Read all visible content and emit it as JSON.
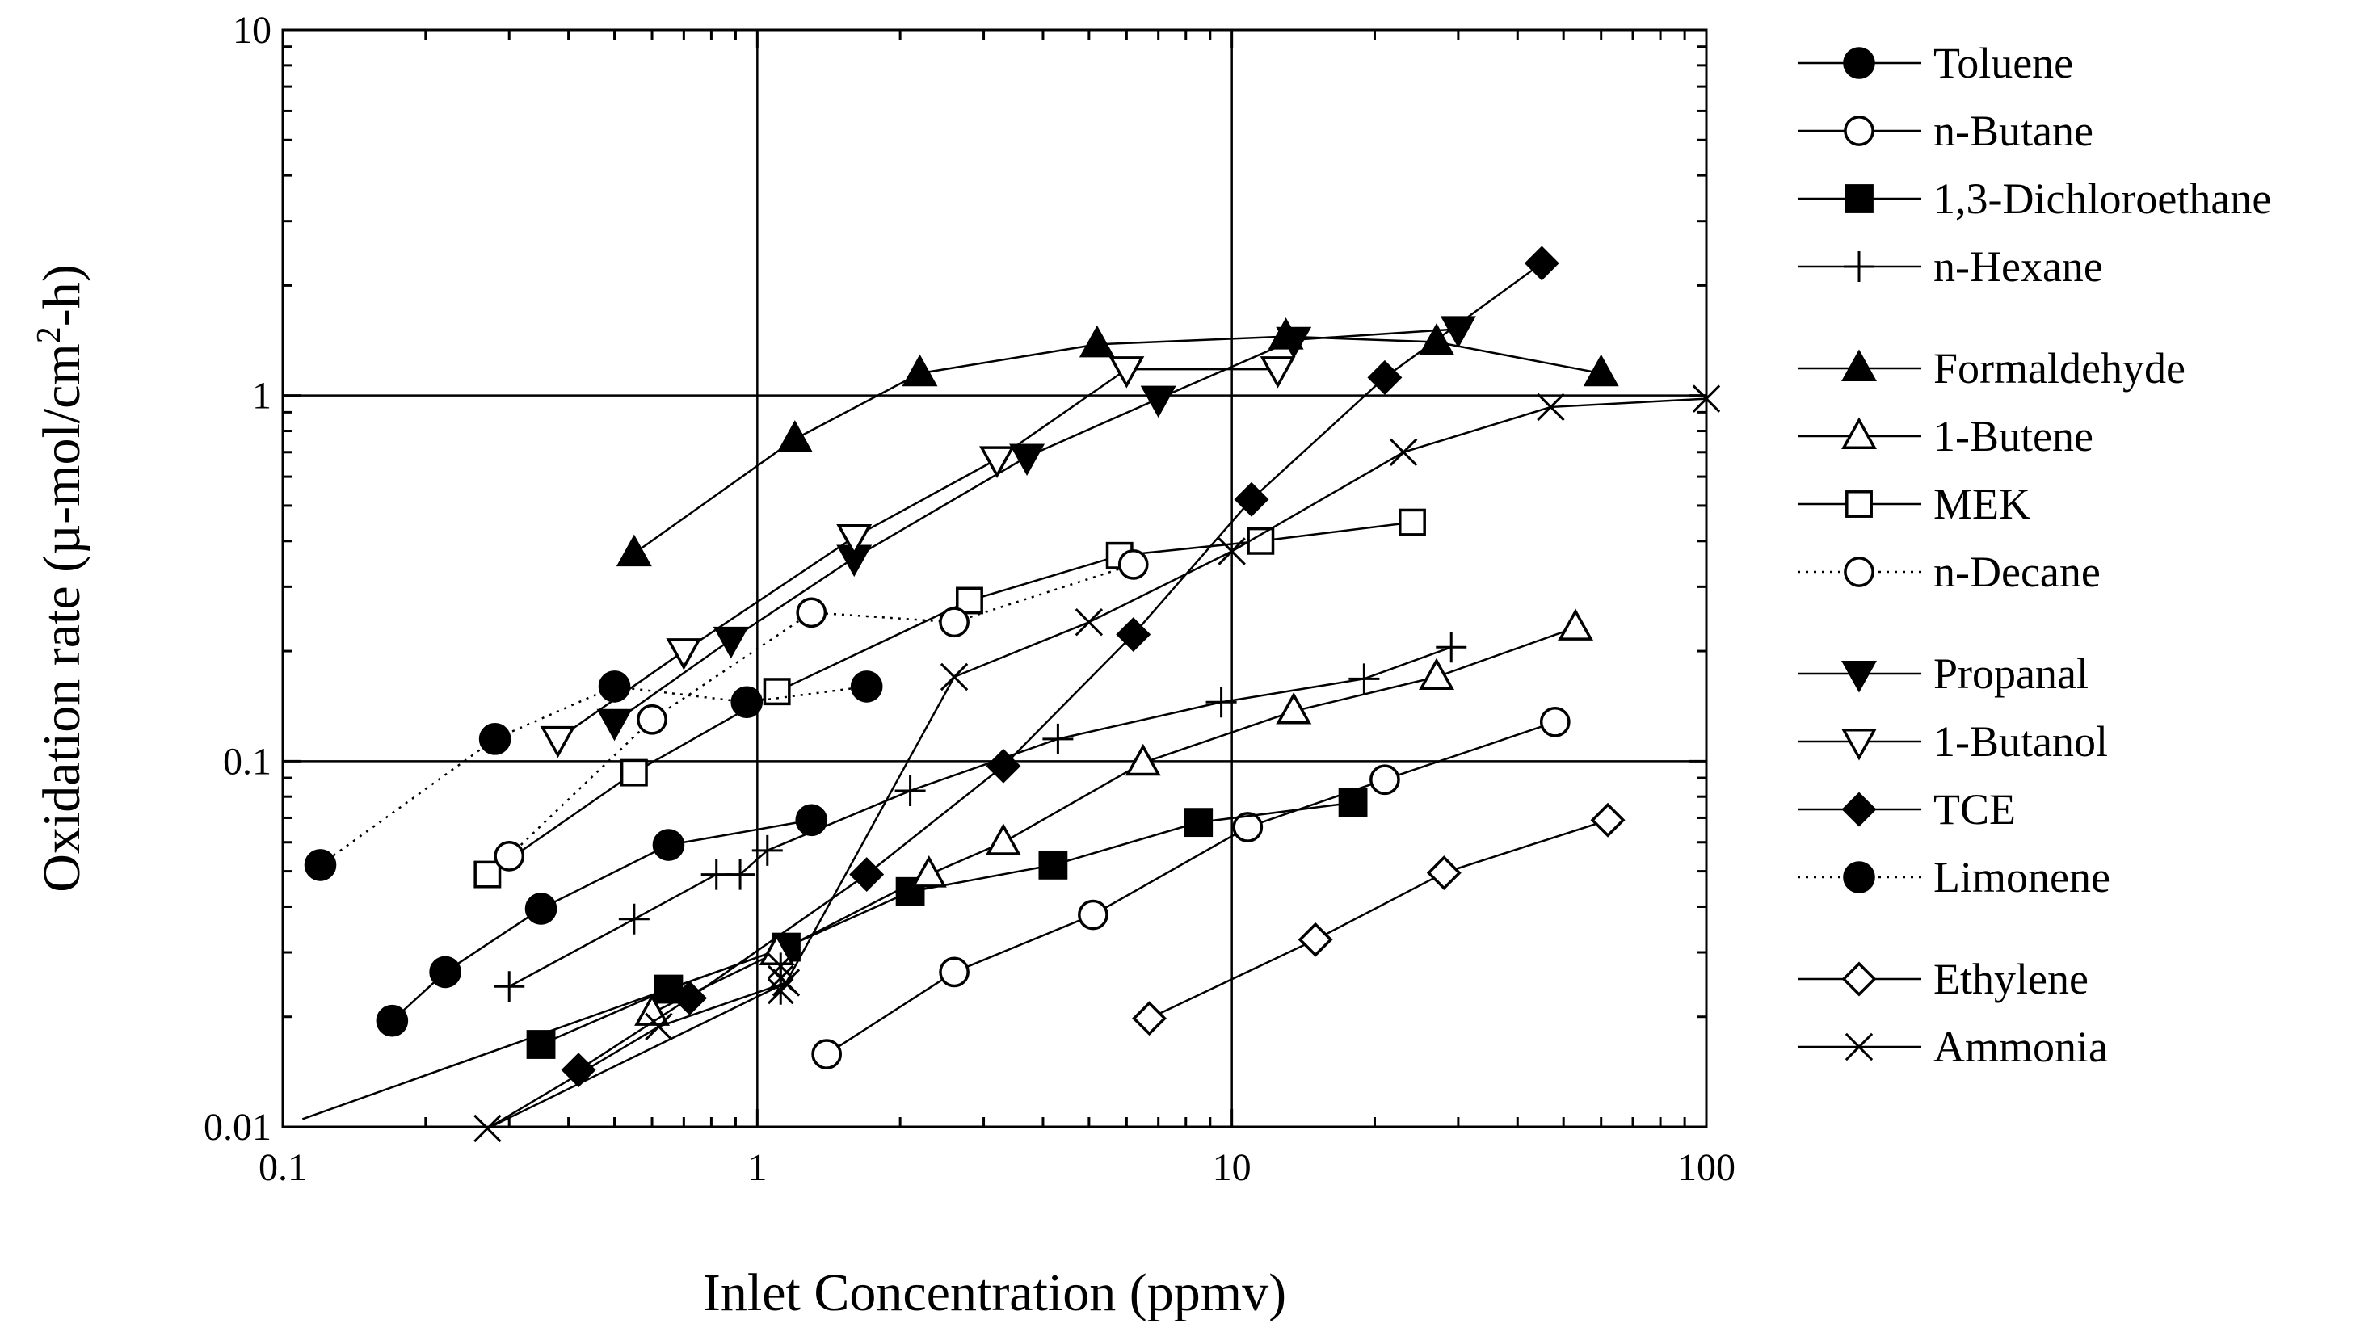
{
  "chart_data": {
    "type": "line",
    "xscale": "log",
    "yscale": "log",
    "xlim": [
      0.1,
      100
    ],
    "ylim": [
      0.01,
      10
    ],
    "grid": "major",
    "xlabel": "Inlet Concentration (ppmv)",
    "ylabel": {
      "main": "Oxidation rate (µ-mol/cm",
      "superscript": "2",
      "tail": "-h)"
    },
    "xticks": [
      {
        "value": 0.1,
        "label": "0.1"
      },
      {
        "value": 1,
        "label": "1"
      },
      {
        "value": 10,
        "label": "10"
      },
      {
        "value": 100,
        "label": "100"
      }
    ],
    "yticks": [
      {
        "value": 0.01,
        "label": "0.01"
      },
      {
        "value": 0.1,
        "label": "0.1"
      },
      {
        "value": 1,
        "label": "1"
      },
      {
        "value": 10,
        "label": "10"
      }
    ],
    "legend_position": "right",
    "series": [
      {
        "name": "Toluene",
        "marker": "circle-filled",
        "line": "solid",
        "x": [
          0.17,
          0.22,
          0.35,
          0.65,
          1.3
        ],
        "y": [
          0.0195,
          0.0265,
          0.0395,
          0.059,
          0.069
        ]
      },
      {
        "name": "n-Butane",
        "marker": "circle-open",
        "line": "solid",
        "x": [
          1.4,
          2.6,
          5.1,
          10.8,
          21,
          48
        ],
        "y": [
          0.0158,
          0.0265,
          0.038,
          0.066,
          0.089,
          0.128
        ]
      },
      {
        "name": "1,3-Dichloroethane",
        "marker": "square-filled",
        "line": "solid",
        "x": [
          0.35,
          0.65,
          1.15,
          2.1,
          4.2,
          8.5,
          18
        ],
        "y": [
          0.0168,
          0.0238,
          0.031,
          0.044,
          0.052,
          0.068,
          0.077
        ]
      },
      {
        "name": "n-Hexane",
        "marker": "plus",
        "line": "solid",
        "x": [
          0.3,
          0.55,
          0.82,
          0.92,
          1.05,
          2.1,
          4.3,
          9.5,
          19,
          29
        ],
        "y": [
          0.0242,
          0.037,
          0.049,
          0.049,
          0.057,
          0.083,
          0.115,
          0.145,
          0.168,
          0.205
        ]
      },
      {
        "name": "Formaldehyde",
        "marker": "triangle-up-filled",
        "line": "solid",
        "x": [
          0.55,
          1.2,
          2.2,
          5.2,
          13,
          27,
          60
        ],
        "y": [
          0.37,
          0.76,
          1.15,
          1.38,
          1.45,
          1.4,
          1.15
        ]
      },
      {
        "name": "1-Butene",
        "marker": "triangle-up-open",
        "line": "solid",
        "x": [
          0.6,
          1.1,
          2.3,
          3.3,
          6.5,
          13.5,
          27,
          53
        ],
        "y": [
          0.0205,
          0.03,
          0.049,
          0.06,
          0.099,
          0.137,
          0.17,
          0.232
        ]
      },
      {
        "name": "MEK",
        "marker": "square-open",
        "line": "solid",
        "x": [
          0.27,
          0.55,
          1.1,
          2.8,
          5.8,
          11.5,
          24
        ],
        "y": [
          0.049,
          0.093,
          0.155,
          0.275,
          0.365,
          0.4,
          0.45
        ]
      },
      {
        "name": "n-Decane",
        "marker": "circle-open",
        "line": "dotted",
        "x": [
          0.3,
          0.6,
          1.3,
          2.6,
          6.2
        ],
        "y": [
          0.055,
          0.13,
          0.255,
          0.24,
          0.345
        ]
      },
      {
        "name": "Propanal",
        "marker": "triangle-down-filled",
        "line": "solid",
        "x": [
          0.5,
          0.88,
          1.6,
          3.7,
          7,
          13.5,
          30
        ],
        "y": [
          0.128,
          0.215,
          0.36,
          0.68,
          0.98,
          1.42,
          1.52
        ]
      },
      {
        "name": "1-Butanol",
        "marker": "triangle-down-open",
        "line": "solid",
        "x": [
          0.38,
          0.7,
          1.6,
          3.2,
          6,
          12.5
        ],
        "y": [
          0.115,
          0.2,
          0.41,
          0.67,
          1.18,
          1.18
        ]
      },
      {
        "name": "TCE",
        "marker": "diamond-filled",
        "line": "solid",
        "x": [
          0.42,
          0.72,
          1.7,
          3.3,
          6.2,
          11,
          21,
          45
        ],
        "y": [
          0.0143,
          0.0225,
          0.049,
          0.097,
          0.222,
          0.52,
          1.12,
          2.3
        ]
      },
      {
        "name": "Limonene",
        "marker": "circle-filled",
        "line": "dotted",
        "x": [
          0.12,
          0.28,
          0.5,
          0.95,
          1.7
        ],
        "y": [
          0.052,
          0.115,
          0.16,
          0.145,
          0.16
        ]
      },
      {
        "name": "Ethylene",
        "marker": "diamond-open",
        "line": "solid",
        "x": [
          6.7,
          15,
          28,
          62
        ],
        "y": [
          0.0198,
          0.0325,
          0.0495,
          0.069
        ]
      },
      {
        "name": "Ammonia",
        "marker": "x",
        "line": "solid",
        "x": [
          0.27,
          0.62,
          1.15,
          2.6,
          5,
          10,
          23,
          47,
          100
        ],
        "y": [
          0.0099,
          0.0188,
          0.0248,
          0.17,
          0.24,
          0.375,
          0.7,
          0.93,
          0.98
        ]
      },
      {
        "name": "",
        "marker": "asterisk",
        "line": "none",
        "x": [
          1.12,
          1.12,
          1.12
        ],
        "y": [
          0.0235,
          0.0255,
          0.0275
        ]
      }
    ],
    "reference_lines": [
      {
        "x": [
          0.11,
          1.15
        ],
        "y": [
          0.0105,
          0.031
        ]
      },
      {
        "x": [
          0.27,
          1.15
        ],
        "y": [
          0.0099,
          0.0248
        ]
      }
    ],
    "legend_groups": [
      [
        "Toluene",
        "n-Butane",
        "1,3-Dichloroethane",
        "n-Hexane"
      ],
      [
        "Formaldehyde",
        "1-Butene",
        "MEK",
        "n-Decane"
      ],
      [
        "Propanal",
        "1-Butanol",
        "TCE",
        "Limonene"
      ],
      [
        "Ethylene",
        "Ammonia"
      ]
    ]
  }
}
